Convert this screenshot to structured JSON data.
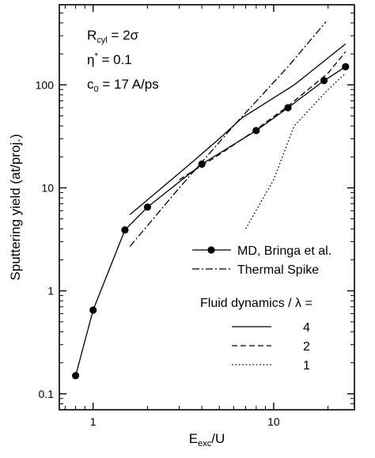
{
  "chart_data": {
    "type": "line",
    "xscale": "log",
    "yscale": "log",
    "xlim": [
      0.65,
      28
    ],
    "ylim": [
      0.07,
      600
    ],
    "xlabel": {
      "main": "E",
      "sub": "exc",
      "rest": "/U"
    },
    "ylabel": "Sputtering yield (at/proj.)",
    "grid": false,
    "x_ticks": [
      {
        "value": 1,
        "label": "1"
      },
      {
        "value": 10,
        "label": "10"
      }
    ],
    "y_ticks": [
      {
        "value": 0.1,
        "label": "0.1"
      },
      {
        "value": 1,
        "label": "1"
      },
      {
        "value": 10,
        "label": "10"
      },
      {
        "value": 100,
        "label": "100"
      }
    ],
    "annotations": [
      {
        "main": "R",
        "sub": "cyl",
        "rest": " = 2σ"
      },
      {
        "main": "η",
        "sup": "*",
        "rest": " = 0.1"
      },
      {
        "main": "c",
        "sub": "0",
        "rest": " = 17 A/ps"
      }
    ],
    "legend_placement": "center-right",
    "legend_title": "Fluid dynamics / λ =",
    "series": [
      {
        "name": "MD, Bringa et al.",
        "style": "solid-marker",
        "x": [
          0.8,
          1.0,
          1.5,
          2.0,
          4.0,
          8.0,
          12.0,
          19.0,
          25.0
        ],
        "y": [
          0.15,
          0.65,
          3.9,
          6.5,
          17,
          36,
          60,
          110,
          150
        ]
      },
      {
        "name": "Thermal Spike",
        "style": "dashdot",
        "x": [
          1.6,
          3.0,
          6.0,
          12.0,
          19.5
        ],
        "y": [
          2.7,
          10,
          40,
          150,
          410
        ]
      },
      {
        "name": "4",
        "style": "solid",
        "x": [
          1.6,
          3.3,
          5.0,
          6.7,
          13.0,
          25.0
        ],
        "y": [
          5.5,
          16,
          30,
          48,
          100,
          250
        ]
      },
      {
        "name": "2",
        "style": "dashed",
        "x": [
          3.0,
          5.0,
          7.5,
          12.0,
          20.0,
          25.0
        ],
        "y": [
          12,
          21,
          34,
          62,
          130,
          210
        ]
      },
      {
        "name": "1",
        "style": "dotted",
        "x": [
          7.0,
          10.0,
          13.0,
          20.0,
          25.0
        ],
        "y": [
          4.0,
          12,
          40,
          90,
          130
        ]
      }
    ]
  }
}
